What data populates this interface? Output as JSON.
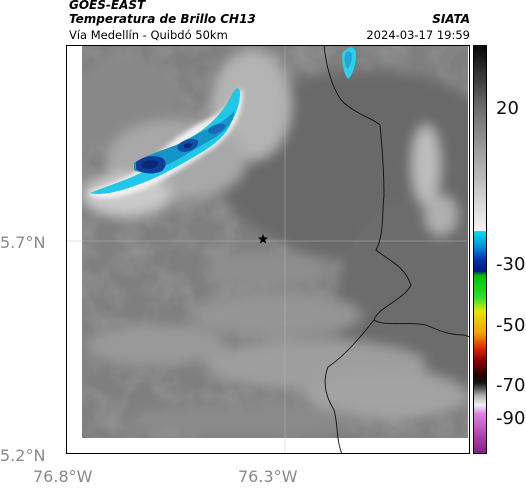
{
  "header": {
    "satellite": "GOES-EAST",
    "product": "Temperatura de Brillo CH13",
    "route": "Vía Medellín - Quibdó 50km",
    "organization": "SIATA",
    "timestamp": "2024-03-17 19:59"
  },
  "map": {
    "lat_labels": [
      "5.7°N",
      "5.2°N"
    ],
    "lon_labels": [
      "76.8°W",
      "76.3°W"
    ],
    "marker_icon": "star-icon",
    "grid": true
  },
  "colorbar": {
    "labels": [
      "20",
      "-30",
      "-50",
      "-70",
      "-90"
    ]
  }
}
